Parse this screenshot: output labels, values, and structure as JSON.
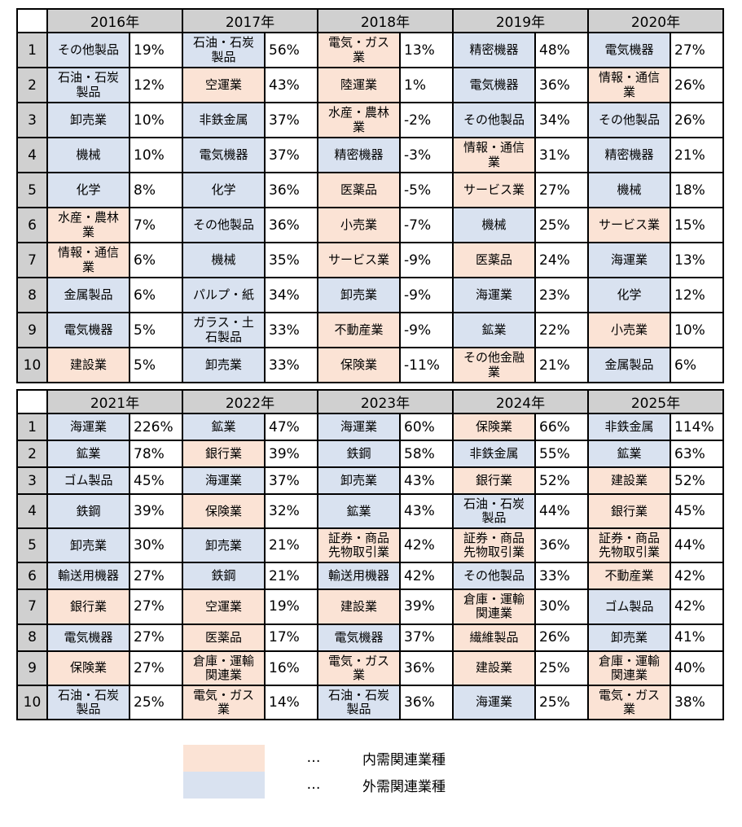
{
  "colors": {
    "domestic_fill": "#fbe3d5",
    "external_fill": "#d9e2f0",
    "header_fill": "#d0d0d0",
    "border": "#000000",
    "background": "#ffffff"
  },
  "ranks": [
    "1",
    "2",
    "3",
    "4",
    "5",
    "6",
    "7",
    "8",
    "9",
    "10"
  ],
  "tables": [
    {
      "name": "ranking-table-2016-2020",
      "years": [
        {
          "label": "2016年",
          "rows": [
            {
              "sector": "その他製品",
              "value": "19%",
              "type": "external"
            },
            {
              "sector": "石油・石炭製品",
              "value": "12%",
              "type": "external"
            },
            {
              "sector": "卸売業",
              "value": "10%",
              "type": "external"
            },
            {
              "sector": "機械",
              "value": "10%",
              "type": "external"
            },
            {
              "sector": "化学",
              "value": "8%",
              "type": "external"
            },
            {
              "sector": "水産・農林業",
              "value": "7%",
              "type": "domestic"
            },
            {
              "sector": "情報・通信業",
              "value": "6%",
              "type": "domestic"
            },
            {
              "sector": "金属製品",
              "value": "6%",
              "type": "external"
            },
            {
              "sector": "電気機器",
              "value": "5%",
              "type": "external"
            },
            {
              "sector": "建設業",
              "value": "5%",
              "type": "domestic"
            }
          ]
        },
        {
          "label": "2017年",
          "rows": [
            {
              "sector": "石油・石炭製品",
              "value": "56%",
              "type": "external"
            },
            {
              "sector": "空運業",
              "value": "43%",
              "type": "domestic"
            },
            {
              "sector": "非鉄金属",
              "value": "37%",
              "type": "external"
            },
            {
              "sector": "電気機器",
              "value": "37%",
              "type": "external"
            },
            {
              "sector": "化学",
              "value": "36%",
              "type": "external"
            },
            {
              "sector": "その他製品",
              "value": "36%",
              "type": "external"
            },
            {
              "sector": "機械",
              "value": "35%",
              "type": "external"
            },
            {
              "sector": "パルプ・紙",
              "value": "34%",
              "type": "external"
            },
            {
              "sector": "ガラス・土石製品",
              "value": "33%",
              "type": "external"
            },
            {
              "sector": "卸売業",
              "value": "33%",
              "type": "external"
            }
          ]
        },
        {
          "label": "2018年",
          "rows": [
            {
              "sector": "電気・ガス業",
              "value": "13%",
              "type": "domestic"
            },
            {
              "sector": "陸運業",
              "value": "1%",
              "type": "domestic"
            },
            {
              "sector": "水産・農林業",
              "value": "-2%",
              "type": "domestic"
            },
            {
              "sector": "精密機器",
              "value": "-3%",
              "type": "external"
            },
            {
              "sector": "医薬品",
              "value": "-5%",
              "type": "domestic"
            },
            {
              "sector": "小売業",
              "value": "-7%",
              "type": "domestic"
            },
            {
              "sector": "サービス業",
              "value": "-9%",
              "type": "domestic"
            },
            {
              "sector": "卸売業",
              "value": "-9%",
              "type": "external"
            },
            {
              "sector": "不動産業",
              "value": "-9%",
              "type": "domestic"
            },
            {
              "sector": "保険業",
              "value": "-11%",
              "type": "domestic"
            }
          ]
        },
        {
          "label": "2019年",
          "rows": [
            {
              "sector": "精密機器",
              "value": "48%",
              "type": "external"
            },
            {
              "sector": "電気機器",
              "value": "36%",
              "type": "external"
            },
            {
              "sector": "その他製品",
              "value": "34%",
              "type": "external"
            },
            {
              "sector": "情報・通信業",
              "value": "31%",
              "type": "domestic"
            },
            {
              "sector": "サービス業",
              "value": "27%",
              "type": "domestic"
            },
            {
              "sector": "機械",
              "value": "25%",
              "type": "external"
            },
            {
              "sector": "医薬品",
              "value": "24%",
              "type": "domestic"
            },
            {
              "sector": "海運業",
              "value": "23%",
              "type": "external"
            },
            {
              "sector": "鉱業",
              "value": "22%",
              "type": "external"
            },
            {
              "sector": "その他金融業",
              "value": "21%",
              "type": "domestic"
            }
          ]
        },
        {
          "label": "2020年",
          "rows": [
            {
              "sector": "電気機器",
              "value": "27%",
              "type": "external"
            },
            {
              "sector": "情報・通信業",
              "value": "26%",
              "type": "domestic"
            },
            {
              "sector": "その他製品",
              "value": "26%",
              "type": "external"
            },
            {
              "sector": "精密機器",
              "value": "21%",
              "type": "external"
            },
            {
              "sector": "機械",
              "value": "18%",
              "type": "external"
            },
            {
              "sector": "サービス業",
              "value": "15%",
              "type": "domestic"
            },
            {
              "sector": "海運業",
              "value": "13%",
              "type": "external"
            },
            {
              "sector": "化学",
              "value": "12%",
              "type": "external"
            },
            {
              "sector": "小売業",
              "value": "10%",
              "type": "domestic"
            },
            {
              "sector": "金属製品",
              "value": "6%",
              "type": "external"
            }
          ]
        }
      ]
    },
    {
      "name": "ranking-table-2021-2025",
      "years": [
        {
          "label": "2021年",
          "rows": [
            {
              "sector": "海運業",
              "value": "226%",
              "type": "external"
            },
            {
              "sector": "鉱業",
              "value": "78%",
              "type": "external"
            },
            {
              "sector": "ゴム製品",
              "value": "45%",
              "type": "external"
            },
            {
              "sector": "鉄鋼",
              "value": "39%",
              "type": "external"
            },
            {
              "sector": "卸売業",
              "value": "30%",
              "type": "external"
            },
            {
              "sector": "輸送用機器",
              "value": "27%",
              "type": "external"
            },
            {
              "sector": "銀行業",
              "value": "27%",
              "type": "domestic"
            },
            {
              "sector": "電気機器",
              "value": "27%",
              "type": "external"
            },
            {
              "sector": "保険業",
              "value": "27%",
              "type": "domestic"
            },
            {
              "sector": "石油・石炭製品",
              "value": "25%",
              "type": "external"
            }
          ]
        },
        {
          "label": "2022年",
          "rows": [
            {
              "sector": "鉱業",
              "value": "47%",
              "type": "external"
            },
            {
              "sector": "銀行業",
              "value": "39%",
              "type": "domestic"
            },
            {
              "sector": "海運業",
              "value": "37%",
              "type": "external"
            },
            {
              "sector": "保険業",
              "value": "32%",
              "type": "domestic"
            },
            {
              "sector": "卸売業",
              "value": "21%",
              "type": "external"
            },
            {
              "sector": "鉄鋼",
              "value": "21%",
              "type": "external"
            },
            {
              "sector": "空運業",
              "value": "19%",
              "type": "domestic"
            },
            {
              "sector": "医薬品",
              "value": "17%",
              "type": "domestic"
            },
            {
              "sector": "倉庫・運輸関連業",
              "value": "16%",
              "type": "domestic"
            },
            {
              "sector": "電気・ガス業",
              "value": "14%",
              "type": "domestic"
            }
          ]
        },
        {
          "label": "2023年",
          "rows": [
            {
              "sector": "海運業",
              "value": "60%",
              "type": "external"
            },
            {
              "sector": "鉄鋼",
              "value": "58%",
              "type": "external"
            },
            {
              "sector": "卸売業",
              "value": "43%",
              "type": "external"
            },
            {
              "sector": "鉱業",
              "value": "43%",
              "type": "external"
            },
            {
              "sector": "証券・商品先物取引業",
              "value": "42%",
              "type": "domestic"
            },
            {
              "sector": "輸送用機器",
              "value": "42%",
              "type": "external"
            },
            {
              "sector": "建設業",
              "value": "39%",
              "type": "domestic"
            },
            {
              "sector": "電気機器",
              "value": "37%",
              "type": "external"
            },
            {
              "sector": "電気・ガス業",
              "value": "36%",
              "type": "domestic"
            },
            {
              "sector": "石油・石炭製品",
              "value": "36%",
              "type": "external"
            }
          ]
        },
        {
          "label": "2024年",
          "rows": [
            {
              "sector": "保険業",
              "value": "66%",
              "type": "domestic"
            },
            {
              "sector": "非鉄金属",
              "value": "55%",
              "type": "external"
            },
            {
              "sector": "銀行業",
              "value": "52%",
              "type": "domestic"
            },
            {
              "sector": "石油・石炭製品",
              "value": "44%",
              "type": "external"
            },
            {
              "sector": "証券・商品先物取引業",
              "value": "36%",
              "type": "domestic"
            },
            {
              "sector": "その他製品",
              "value": "33%",
              "type": "external"
            },
            {
              "sector": "倉庫・運輸関連業",
              "value": "30%",
              "type": "domestic"
            },
            {
              "sector": "繊維製品",
              "value": "26%",
              "type": "domestic"
            },
            {
              "sector": "建設業",
              "value": "25%",
              "type": "domestic"
            },
            {
              "sector": "海運業",
              "value": "25%",
              "type": "external"
            }
          ]
        },
        {
          "label": "2025年",
          "rows": [
            {
              "sector": "非鉄金属",
              "value": "114%",
              "type": "external"
            },
            {
              "sector": "鉱業",
              "value": "63%",
              "type": "external"
            },
            {
              "sector": "建設業",
              "value": "52%",
              "type": "domestic"
            },
            {
              "sector": "銀行業",
              "value": "45%",
              "type": "domestic"
            },
            {
              "sector": "証券・商品先物取引業",
              "value": "44%",
              "type": "domestic"
            },
            {
              "sector": "不動産業",
              "value": "42%",
              "type": "domestic"
            },
            {
              "sector": "ゴム製品",
              "value": "42%",
              "type": "external"
            },
            {
              "sector": "卸売業",
              "value": "41%",
              "type": "external"
            },
            {
              "sector": "倉庫・運輸関連業",
              "value": "40%",
              "type": "domestic"
            },
            {
              "sector": "電気・ガス業",
              "value": "38%",
              "type": "domestic"
            }
          ]
        }
      ]
    }
  ],
  "legend": {
    "items": [
      {
        "swatch": "domestic",
        "dots": "…",
        "label": "内需関連業種"
      },
      {
        "swatch": "external",
        "dots": "…",
        "label": "外需関連業種"
      }
    ]
  }
}
